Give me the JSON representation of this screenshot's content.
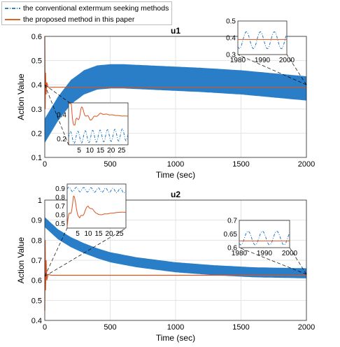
{
  "legend": {
    "items": [
      {
        "label": "the conventional extermum seeking methods",
        "style": "dash-dot",
        "color": "#2e86c1"
      },
      {
        "label": "the proposed method in this paper",
        "style": "solid",
        "color": "#e0622b"
      }
    ]
  },
  "colors": {
    "conventional": "#1f77c4",
    "proposed": "#d9541e",
    "zoom_connector": "#000000"
  },
  "chart_data": [
    {
      "type": "line",
      "title": "u1",
      "xlabel": "Time (sec)",
      "ylabel": "Action Value",
      "xlim": [
        0,
        2000
      ],
      "ylim": [
        0.1,
        0.6
      ],
      "xticks": [
        "0",
        "500",
        "1000",
        "1500",
        "2000"
      ],
      "yticks": [
        "0.1",
        "0.2",
        "0.3",
        "0.4",
        "0.5",
        "0.6"
      ],
      "grid": true,
      "series": [
        {
          "name": "the conventional extermum seeking methods",
          "style": "band",
          "x": [
            0,
            100,
            200,
            300,
            400,
            500,
            600,
            800,
            1000,
            1200,
            1500,
            1800,
            2000
          ],
          "y": [
            0.21,
            0.3,
            0.37,
            0.41,
            0.43,
            0.435,
            0.435,
            0.43,
            0.425,
            0.42,
            0.41,
            0.395,
            0.385
          ],
          "amplitude": 0.05
        },
        {
          "name": "the proposed method in this paper",
          "style": "solid",
          "x": [
            0,
            3,
            6,
            10,
            15,
            25,
            50,
            2000
          ],
          "y": [
            0.6,
            0.3,
            0.45,
            0.36,
            0.41,
            0.39,
            0.39,
            0.39
          ]
        }
      ],
      "insets": [
        {
          "xlim": [
            0,
            28
          ],
          "ylim": [
            0.15,
            0.5
          ],
          "xticks": [
            "5",
            "10",
            "15",
            "20",
            "25"
          ],
          "yticks": [
            "0.2",
            "0.4"
          ]
        },
        {
          "xlim": [
            1980,
            2000
          ],
          "ylim": [
            0.3,
            0.5
          ],
          "xticks": [
            "1980",
            "1990",
            "2000"
          ],
          "yticks": [
            "0.3",
            "0.4",
            "0.5"
          ]
        }
      ]
    },
    {
      "type": "line",
      "title": "u2",
      "xlabel": "Time (sec)",
      "ylabel": "Action Value",
      "xlim": [
        0,
        2000
      ],
      "ylim": [
        0.4,
        1.0
      ],
      "xticks": [
        "0",
        "500",
        "1000",
        "1500",
        "2000"
      ],
      "yticks": [
        "0.4",
        "0.5",
        "0.6",
        "0.7",
        "0.8",
        "0.9",
        "1"
      ],
      "grid": true,
      "series": [
        {
          "name": "the conventional extermum seeking methods",
          "style": "band",
          "x": [
            0,
            50,
            100,
            200,
            300,
            400,
            500,
            700,
            1000,
            1300,
            1600,
            2000
          ],
          "y": [
            0.89,
            0.86,
            0.83,
            0.79,
            0.76,
            0.735,
            0.715,
            0.69,
            0.665,
            0.65,
            0.64,
            0.635
          ],
          "amplitude": 0.025
        },
        {
          "name": "the proposed method in this paper",
          "style": "solid",
          "x": [
            0,
            3,
            6,
            10,
            15,
            25,
            50,
            2000
          ],
          "y": [
            0.45,
            0.8,
            0.55,
            0.7,
            0.6,
            0.63,
            0.625,
            0.625
          ]
        }
      ],
      "insets": [
        {
          "xlim": [
            0,
            28
          ],
          "ylim": [
            0.45,
            0.95
          ],
          "xticks": [
            "5",
            "10",
            "15",
            "20",
            "25"
          ],
          "yticks": [
            "0.5",
            "0.6",
            "0.7",
            "0.8",
            "0.9"
          ]
        },
        {
          "xlim": [
            1980,
            2000
          ],
          "ylim": [
            0.6,
            0.7
          ],
          "xticks": [
            "1980",
            "1990",
            "2000"
          ],
          "yticks": [
            "0.6",
            "0.65",
            "0.7"
          ]
        }
      ]
    }
  ]
}
